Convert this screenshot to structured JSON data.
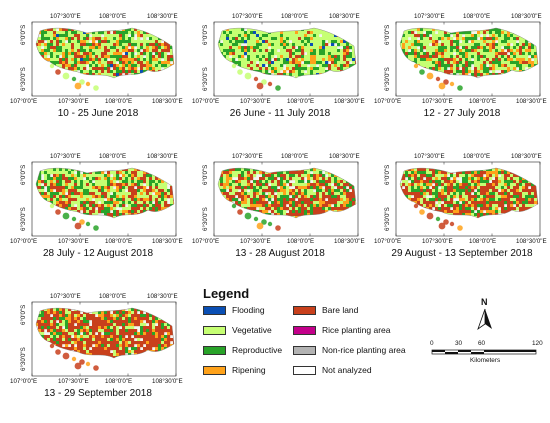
{
  "panels": [
    {
      "caption": "10 - 25 June 2018",
      "scheme": "june"
    },
    {
      "caption": "26 June - 11 July 2018",
      "scheme": "july1"
    },
    {
      "caption": "12 - 27 July 2018",
      "scheme": "july2"
    },
    {
      "caption": "28 July - 12 August 2018",
      "scheme": "aug1"
    },
    {
      "caption": "13 - 28 August 2018",
      "scheme": "aug2"
    },
    {
      "caption": "29 August - 13 September 2018",
      "scheme": "sep1"
    },
    {
      "caption": "13 - 29 September 2018",
      "scheme": "sep2"
    }
  ],
  "axes": {
    "top_ticks": [
      "107°30'0\"E",
      "108°0'0\"E",
      "108°30'0\"E"
    ],
    "bottom_ticks": [
      "107°0'0\"E",
      "107°30'0\"E",
      "108°0'0\"E",
      "108°30'0\"E"
    ],
    "left_ticks": [
      "6°0'0\"S",
      "6°30'0\"S"
    ]
  },
  "legend": {
    "title": "Legend",
    "items": [
      {
        "label": "Flooding",
        "color": "#0a4fb4"
      },
      {
        "label": "Vegetative",
        "color": "#c6ff73"
      },
      {
        "label": "Reproductive",
        "color": "#29a329"
      },
      {
        "label": "Ripening",
        "color": "#ffa21a"
      },
      {
        "label": "Bare land",
        "color": "#c8401c"
      },
      {
        "label": "Rice planting area",
        "color": "#c3008a"
      },
      {
        "label": "Non-rice planting area",
        "color": "#b3b3b3"
      },
      {
        "label": "Not analyzed",
        "color": "#ffffff"
      }
    ]
  },
  "north_arrow": {
    "label": "N"
  },
  "scale_bar": {
    "labels": [
      "0",
      "30",
      "60",
      "120"
    ],
    "unit": "Kilometers"
  }
}
